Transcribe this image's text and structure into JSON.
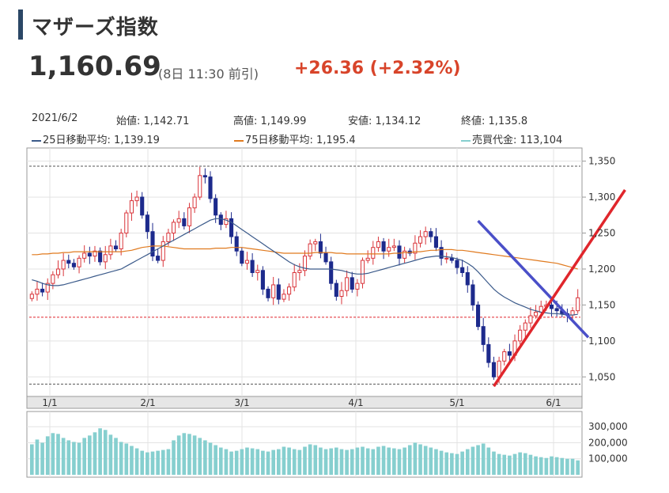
{
  "header": {
    "title": "マザーズ指数",
    "price": "1,160.69",
    "time": "(8日 11:30 前引)",
    "change": "+26.36  (+2.32%)"
  },
  "info": {
    "date": "2021/6/2",
    "open": "始値: 1,142.71",
    "high": "高値: 1,149.99",
    "low": "安値: 1,134.12",
    "close": "終値: 1,135.8",
    "ma25": "25日移動平均: 1,139.19",
    "ma75": "75日移動平均: 1,195.4",
    "volume": "売買代金: 113,104"
  },
  "colors": {
    "up": "#d9343a",
    "down": "#1d2a8c",
    "ma25": "#3b5a8a",
    "ma75": "#e07a1f",
    "volume": "#86cfcf",
    "trend_down": "#4a4fc8",
    "trend_up": "#e0262c"
  },
  "chart_data": {
    "type": "candlestick",
    "x_tick_labels": [
      "1/1",
      "2/1",
      "3/1",
      "4/1",
      "5/1",
      "6/1"
    ],
    "y_tick_labels": [
      "1,350",
      "1,300",
      "1,250",
      "1,200",
      "1,150",
      "1,100",
      "1,050"
    ],
    "y_ticks": [
      1350,
      1300,
      1250,
      1200,
      1150,
      1100,
      1050
    ],
    "ylim": [
      1025,
      1365
    ],
    "volume_tick_labels": [
      "300,000",
      "200,000",
      "100,000"
    ],
    "volume_ticks": [
      300000,
      200000,
      100000
    ],
    "volume_ylim": [
      0,
      380000
    ],
    "reference_lines": [
      1343,
      1133,
      1040
    ],
    "close": [
      1165,
      1172,
      1168,
      1180,
      1192,
      1200,
      1212,
      1208,
      1203,
      1215,
      1222,
      1218,
      1225,
      1210,
      1220,
      1232,
      1228,
      1250,
      1278,
      1295,
      1300,
      1275,
      1252,
      1218,
      1212,
      1238,
      1250,
      1265,
      1270,
      1260,
      1285,
      1300,
      1330,
      1328,
      1298,
      1275,
      1262,
      1270,
      1245,
      1225,
      1208,
      1212,
      1195,
      1198,
      1172,
      1160,
      1178,
      1158,
      1165,
      1175,
      1195,
      1198,
      1218,
      1235,
      1238,
      1222,
      1210,
      1180,
      1162,
      1170,
      1188,
      1172,
      1180,
      1212,
      1215,
      1230,
      1238,
      1225,
      1230,
      1232,
      1215,
      1225,
      1222,
      1236,
      1245,
      1252,
      1245,
      1230,
      1215,
      1215,
      1212,
      1202,
      1195,
      1178,
      1150,
      1120,
      1095,
      1070,
      1050,
      1072,
      1085,
      1080,
      1100,
      1115,
      1125,
      1135,
      1140,
      1148,
      1150,
      1145,
      1142,
      1138,
      1136,
      1142,
      1160
    ],
    "volume": [
      190000,
      220000,
      200000,
      240000,
      260000,
      255000,
      230000,
      215000,
      205000,
      200000,
      230000,
      245000,
      265000,
      290000,
      280000,
      250000,
      230000,
      205000,
      195000,
      180000,
      165000,
      150000,
      140000,
      145000,
      150000,
      155000,
      160000,
      215000,
      245000,
      260000,
      255000,
      245000,
      230000,
      215000,
      200000,
      185000,
      170000,
      160000,
      145000,
      150000,
      160000,
      170000,
      165000,
      160000,
      150000,
      145000,
      155000,
      160000,
      175000,
      170000,
      160000,
      155000,
      175000,
      190000,
      185000,
      170000,
      160000,
      165000,
      170000,
      160000,
      155000,
      160000,
      170000,
      175000,
      165000,
      160000,
      175000,
      180000,
      170000,
      165000,
      160000,
      170000,
      185000,
      200000,
      190000,
      180000,
      170000,
      160000,
      150000,
      140000,
      135000,
      130000,
      145000,
      160000,
      175000,
      185000,
      195000,
      170000,
      145000,
      130000,
      125000,
      120000,
      130000,
      140000,
      135000,
      125000,
      115000,
      110000,
      105000,
      115000,
      110000,
      105000,
      100000,
      100000,
      90000
    ],
    "ma25": [
      1185,
      1183,
      1180,
      1178,
      1177,
      1177,
      1178,
      1180,
      1182,
      1184,
      1186,
      1188,
      1190,
      1192,
      1194,
      1196,
      1198,
      1200,
      1204,
      1208,
      1212,
      1216,
      1220,
      1224,
      1228,
      1232,
      1236,
      1240,
      1244,
      1248,
      1252,
      1256,
      1260,
      1264,
      1268,
      1270,
      1270,
      1268,
      1265,
      1260,
      1255,
      1250,
      1245,
      1240,
      1235,
      1230,
      1225,
      1220,
      1215,
      1210,
      1206,
      1203,
      1201,
      1200,
      1200,
      1200,
      1200,
      1200,
      1199,
      1198,
      1196,
      1194,
      1193,
      1193,
      1194,
      1196,
      1198,
      1200,
      1202,
      1204,
      1206,
      1208,
      1210,
      1212,
      1214,
      1216,
      1217,
      1218,
      1218,
      1217,
      1216,
      1214,
      1212,
      1208,
      1203,
      1196,
      1188,
      1180,
      1172,
      1166,
      1161,
      1157,
      1153,
      1150,
      1147,
      1144,
      1142,
      1140,
      1139,
      1138,
      1138,
      1137,
      1136,
      1136,
      1137
    ],
    "ma75": [
      1220,
      1220,
      1221,
      1221,
      1222,
      1222,
      1223,
      1223,
      1224,
      1224,
      1224,
      1224,
      1224,
      1224,
      1224,
      1224,
      1224,
      1224,
      1225,
      1226,
      1228,
      1230,
      1231,
      1232,
      1232,
      1232,
      1231,
      1230,
      1229,
      1228,
      1228,
      1228,
      1228,
      1228,
      1228,
      1229,
      1229,
      1229,
      1230,
      1230,
      1230,
      1229,
      1228,
      1227,
      1226,
      1225,
      1224,
      1223,
      1222,
      1222,
      1222,
      1222,
      1222,
      1222,
      1223,
      1223,
      1223,
      1223,
      1222,
      1222,
      1221,
      1221,
      1221,
      1221,
      1221,
      1221,
      1221,
      1221,
      1221,
      1222,
      1222,
      1223,
      1223,
      1224,
      1224,
      1225,
      1226,
      1226,
      1227,
      1227,
      1227,
      1226,
      1226,
      1225,
      1224,
      1223,
      1222,
      1221,
      1220,
      1219,
      1218,
      1217,
      1216,
      1215,
      1214,
      1213,
      1212,
      1211,
      1210,
      1209,
      1208,
      1206,
      1204,
      1202,
      1200
    ]
  },
  "annotations": {
    "trend_down": {
      "from": [
        85,
        1267
      ],
      "to": [
        106,
        1105
      ]
    },
    "trend_up": {
      "from": [
        88,
        1037
      ],
      "to": [
        113,
        1310
      ]
    }
  }
}
